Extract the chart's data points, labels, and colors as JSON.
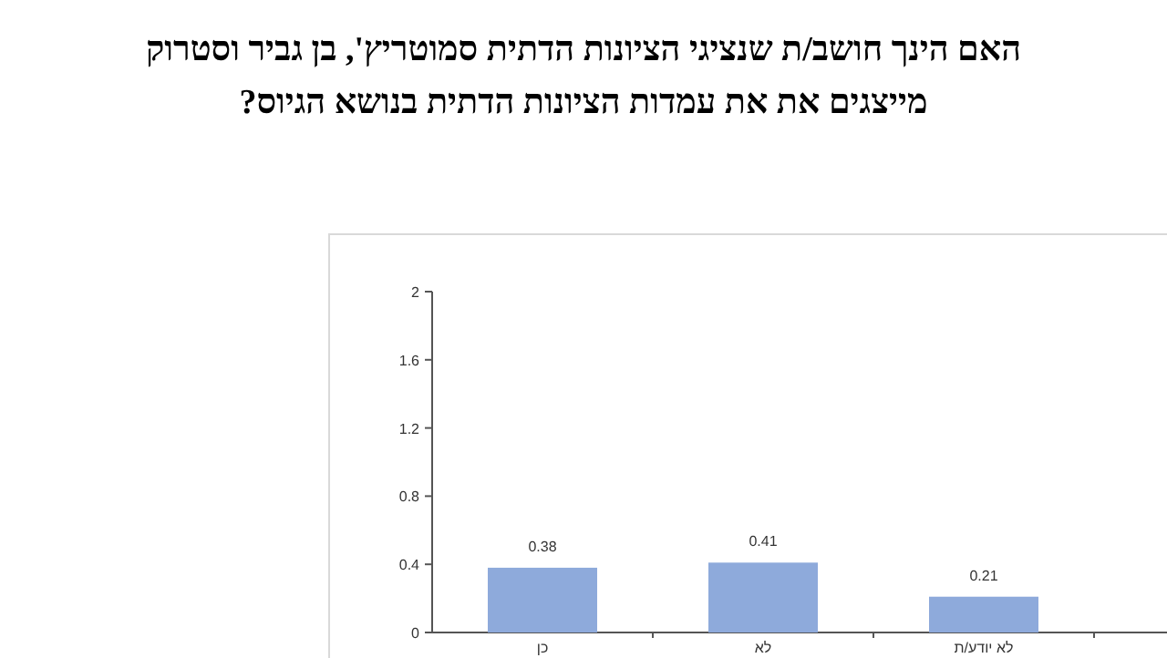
{
  "chart_data": {
    "type": "bar",
    "title": "האם הינך חושב/ת שנציגי הציונות הדתית סמוטריץ', בן גביר וסטרוק מייצגים את את עמדות הציונות הדתית בנושא הגיוס?",
    "categories": [
      "כן",
      "לא",
      "לא יודע/ת"
    ],
    "values": [
      0.38,
      0.41,
      0.21
    ],
    "color": "#8eaadb",
    "ylim": [
      0,
      2
    ],
    "yticks": [
      0,
      0.4,
      0.8,
      1.2,
      1.6,
      2
    ],
    "data_labels": true
  }
}
